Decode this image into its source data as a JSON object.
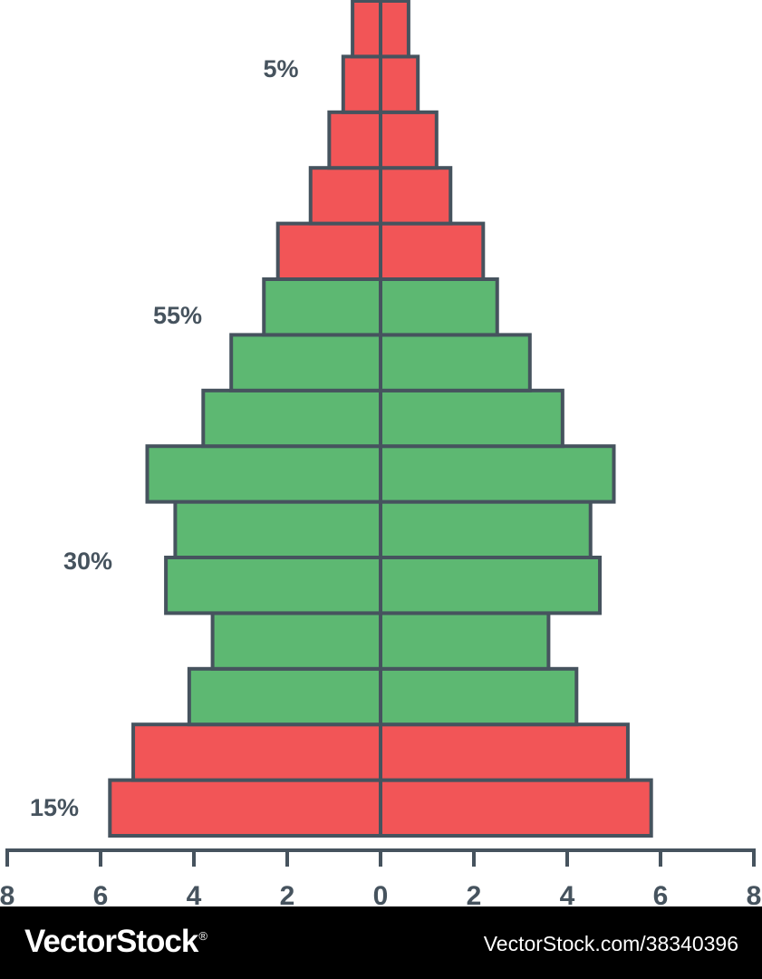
{
  "chart_data": {
    "type": "bar",
    "orientation": "horizontal",
    "layout": "population-pyramid",
    "xlim": [
      -8,
      8
    ],
    "x_ticks": [
      -8,
      -6,
      -4,
      -2,
      0,
      2,
      4,
      6,
      8
    ],
    "x_tick_labels": [
      "8",
      "6",
      "4",
      "2",
      "0",
      "2",
      "4",
      "6",
      "8"
    ],
    "grid": false,
    "series": [
      {
        "values": [
          5.8,
          5.3,
          4.1,
          3.6,
          4.6,
          4.4,
          5.0,
          3.8,
          3.2,
          2.5,
          2.2,
          1.5,
          1.1,
          0.8,
          0.6
        ]
      },
      {
        "values": [
          5.8,
          5.3,
          4.2,
          3.6,
          4.7,
          4.5,
          5.0,
          3.9,
          3.2,
          2.5,
          2.2,
          1.5,
          1.2,
          0.8,
          0.6
        ]
      }
    ],
    "group_labels": [
      {
        "text": "15%",
        "color": "#f25557"
      },
      {
        "text": "30%",
        "color": "#5db872"
      },
      {
        "text": "55%",
        "color": "#5db872"
      },
      {
        "text": "5%",
        "color": "#f25557"
      }
    ],
    "bar_colors": [
      "#f25557",
      "#f25557",
      "#5db872",
      "#5db872",
      "#5db872",
      "#5db872",
      "#5db872",
      "#5db872",
      "#5db872",
      "#5db872",
      "#f25557",
      "#f25557",
      "#f25557",
      "#f25557",
      "#f25557"
    ],
    "outline_color": "#46535e"
  },
  "footer": {
    "brand": "VectorStock",
    "registered_mark": "®",
    "image_ref": "VectorStock.com/38340396"
  }
}
